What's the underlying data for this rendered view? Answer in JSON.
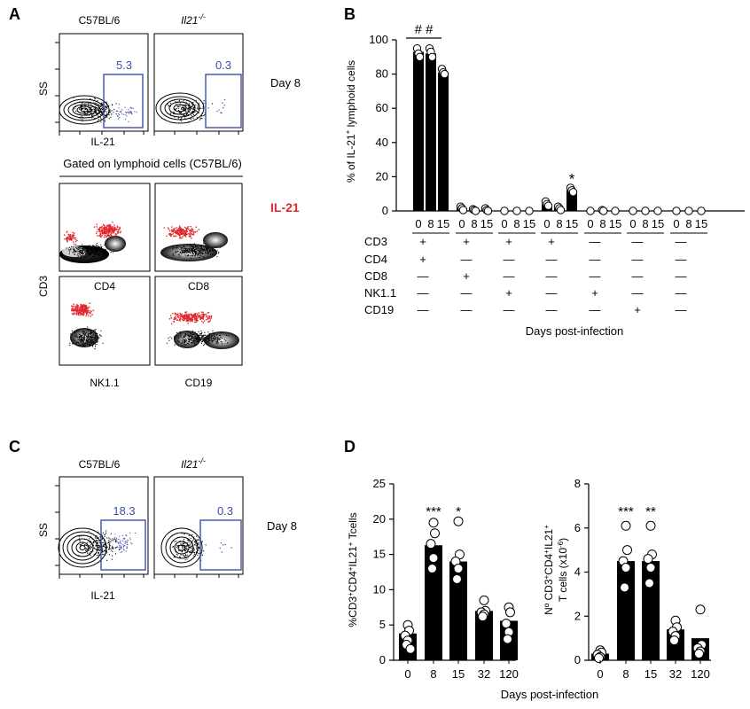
{
  "panel_letters": {
    "A": "A",
    "B": "B",
    "C": "C",
    "D": "D"
  },
  "colors": {
    "gate_blue": "#3b4fa8",
    "il21_red": "#e0282e",
    "bar_black": "#000000"
  },
  "flow_A": {
    "strain_wt": "C57BL/6",
    "strain_ko": "Il21",
    "strain_ko_sup": "-/-",
    "gate_wt": "5.3",
    "gate_ko": "0.3",
    "ylabel": "SS",
    "xlabel": "IL-21",
    "day_label": "Day 8",
    "gated_title": "Gated on lymphoid cells (C57BL/6)",
    "red_label": "IL-21",
    "cd3_label": "CD3",
    "marker_labels": [
      "CD4",
      "CD8",
      "NK1.1",
      "CD19"
    ]
  },
  "flow_C": {
    "strain_wt": "C57BL/6",
    "strain_ko": "Il21",
    "strain_ko_sup": "-/-",
    "gate_wt": "18.3",
    "gate_ko": "0.3",
    "ylabel": "SS",
    "xlabel": "IL-21",
    "day_label": "Day 8"
  },
  "chart_data": [
    {
      "id": "B",
      "type": "bar",
      "ylabel": "% of IL-21+ lymphoid cells",
      "ylabel_pre": "% of IL-21",
      "ylabel_sup": "+",
      "ylabel_post": " lymphoid cells",
      "ylim": [
        0,
        100
      ],
      "yticks": [
        "0",
        "20",
        "40",
        "60",
        "80",
        "100"
      ],
      "xlabel": "Days post-infection",
      "day_ticks": [
        "0",
        "8",
        "15"
      ],
      "annotations": {
        "hash": "# #",
        "star": "*"
      },
      "groups": [
        {
          "values": [
            93,
            92,
            81
          ],
          "points": [
            [
              95,
              92,
              90
            ],
            [
              95,
              93,
              90
            ],
            [
              83,
              81,
              80
            ]
          ]
        },
        {
          "values": [
            1.5,
            0.5,
            0.5
          ],
          "points": [
            [
              2.5,
              1.5,
              0.5
            ],
            [
              1,
              0.5,
              0
            ],
            [
              1.5,
              0.5,
              0
            ]
          ]
        },
        {
          "values": [
            0,
            0,
            0
          ],
          "points": [
            [
              0
            ],
            [
              0
            ],
            [
              0
            ]
          ]
        },
        {
          "values": [
            4,
            1.5,
            12
          ],
          "points": [
            [
              5.5,
              4,
              3
            ],
            [
              2.5,
              1.5,
              0.5
            ],
            [
              13.5,
              12,
              11
            ]
          ]
        },
        {
          "values": [
            0,
            0.5,
            0
          ],
          "points": [
            [
              0
            ],
            [
              0.5,
              0
            ],
            [
              0
            ]
          ]
        },
        {
          "values": [
            0,
            0,
            0
          ],
          "points": [
            [
              0
            ],
            [
              0
            ],
            [
              0
            ]
          ]
        },
        {
          "values": [
            0,
            0,
            0
          ],
          "points": [
            [
              0
            ],
            [
              0
            ],
            [
              0
            ]
          ]
        }
      ],
      "phenotype_table": {
        "rows": [
          "CD3",
          "CD4",
          "CD8",
          "NK1.1",
          "CD19"
        ],
        "signs": [
          [
            "+",
            "+",
            "+",
            "+",
            "—",
            "—",
            "—"
          ],
          [
            "+",
            "—",
            "—",
            "—",
            "—",
            "—",
            "—"
          ],
          [
            "—",
            "+",
            "—",
            "—",
            "—",
            "—",
            "—"
          ],
          [
            "—",
            "—",
            "+",
            "—",
            "+",
            "—",
            "—"
          ],
          [
            "—",
            "—",
            "—",
            "—",
            "—",
            "+",
            "—"
          ]
        ]
      }
    },
    {
      "id": "D1",
      "type": "bar",
      "ylabel": "%CD3+CD4+IL21+ Tcells",
      "ylabel_parts": [
        [
          "%CD3",
          ""
        ],
        [
          "+",
          "sup"
        ],
        [
          "CD4",
          ""
        ],
        [
          "+",
          "sup"
        ],
        [
          "IL21",
          ""
        ],
        [
          "+",
          "sup"
        ],
        [
          " Tcells",
          ""
        ]
      ],
      "ylim": [
        0,
        25
      ],
      "yticks": [
        "0",
        "5",
        "10",
        "15",
        "20",
        "25"
      ],
      "categories": [
        "0",
        "8",
        "15",
        "32",
        "120"
      ],
      "values": [
        3.8,
        16.3,
        14.0,
        7.0,
        5.6
      ],
      "points": [
        [
          5,
          4.2,
          3.5,
          2.8,
          2.2,
          1.6
        ],
        [
          19.5,
          18,
          16.5,
          14.5,
          13
        ],
        [
          19.7,
          15,
          14,
          13,
          11.5
        ],
        [
          8.5,
          7,
          6.8,
          6.5,
          6.2
        ],
        [
          7.5,
          6.8,
          5.2,
          4,
          3
        ]
      ],
      "annotations": [
        "",
        "***",
        "*",
        "",
        ""
      ]
    },
    {
      "id": "D2",
      "type": "bar",
      "ylabel": "Nº CD3+CD4+IL21+ T cells (x10-6)",
      "ylabel_line1": [
        [
          "Nº CD3",
          ""
        ],
        [
          "+",
          "sup"
        ],
        [
          "CD4",
          ""
        ],
        [
          "+",
          "sup"
        ],
        [
          "IL21",
          ""
        ],
        [
          "+",
          "sup"
        ]
      ],
      "ylabel_line2": [
        [
          "T cells (x10",
          ""
        ],
        [
          "-6",
          "sup"
        ],
        [
          ")",
          ""
        ]
      ],
      "ylim": [
        0,
        8
      ],
      "yticks": [
        "0",
        "2",
        "4",
        "6",
        "8"
      ],
      "categories": [
        "0",
        "8",
        "15",
        "32",
        "120"
      ],
      "values": [
        0.3,
        4.5,
        4.5,
        1.4,
        1.0
      ],
      "points": [
        [
          0.45,
          0.35,
          0.25,
          0.15,
          0.1
        ],
        [
          6.1,
          5,
          4.5,
          4.2,
          3.3
        ],
        [
          6.1,
          4.8,
          4.6,
          4.2,
          3.5
        ],
        [
          1.8,
          1.5,
          1.3,
          1.1,
          0.9
        ],
        [
          2.3,
          0.7,
          0.55,
          0.4,
          0.3
        ]
      ],
      "annotations": [
        "",
        "***",
        "**",
        "",
        ""
      ]
    }
  ],
  "shared_xlabel_D": "Days post-infection"
}
